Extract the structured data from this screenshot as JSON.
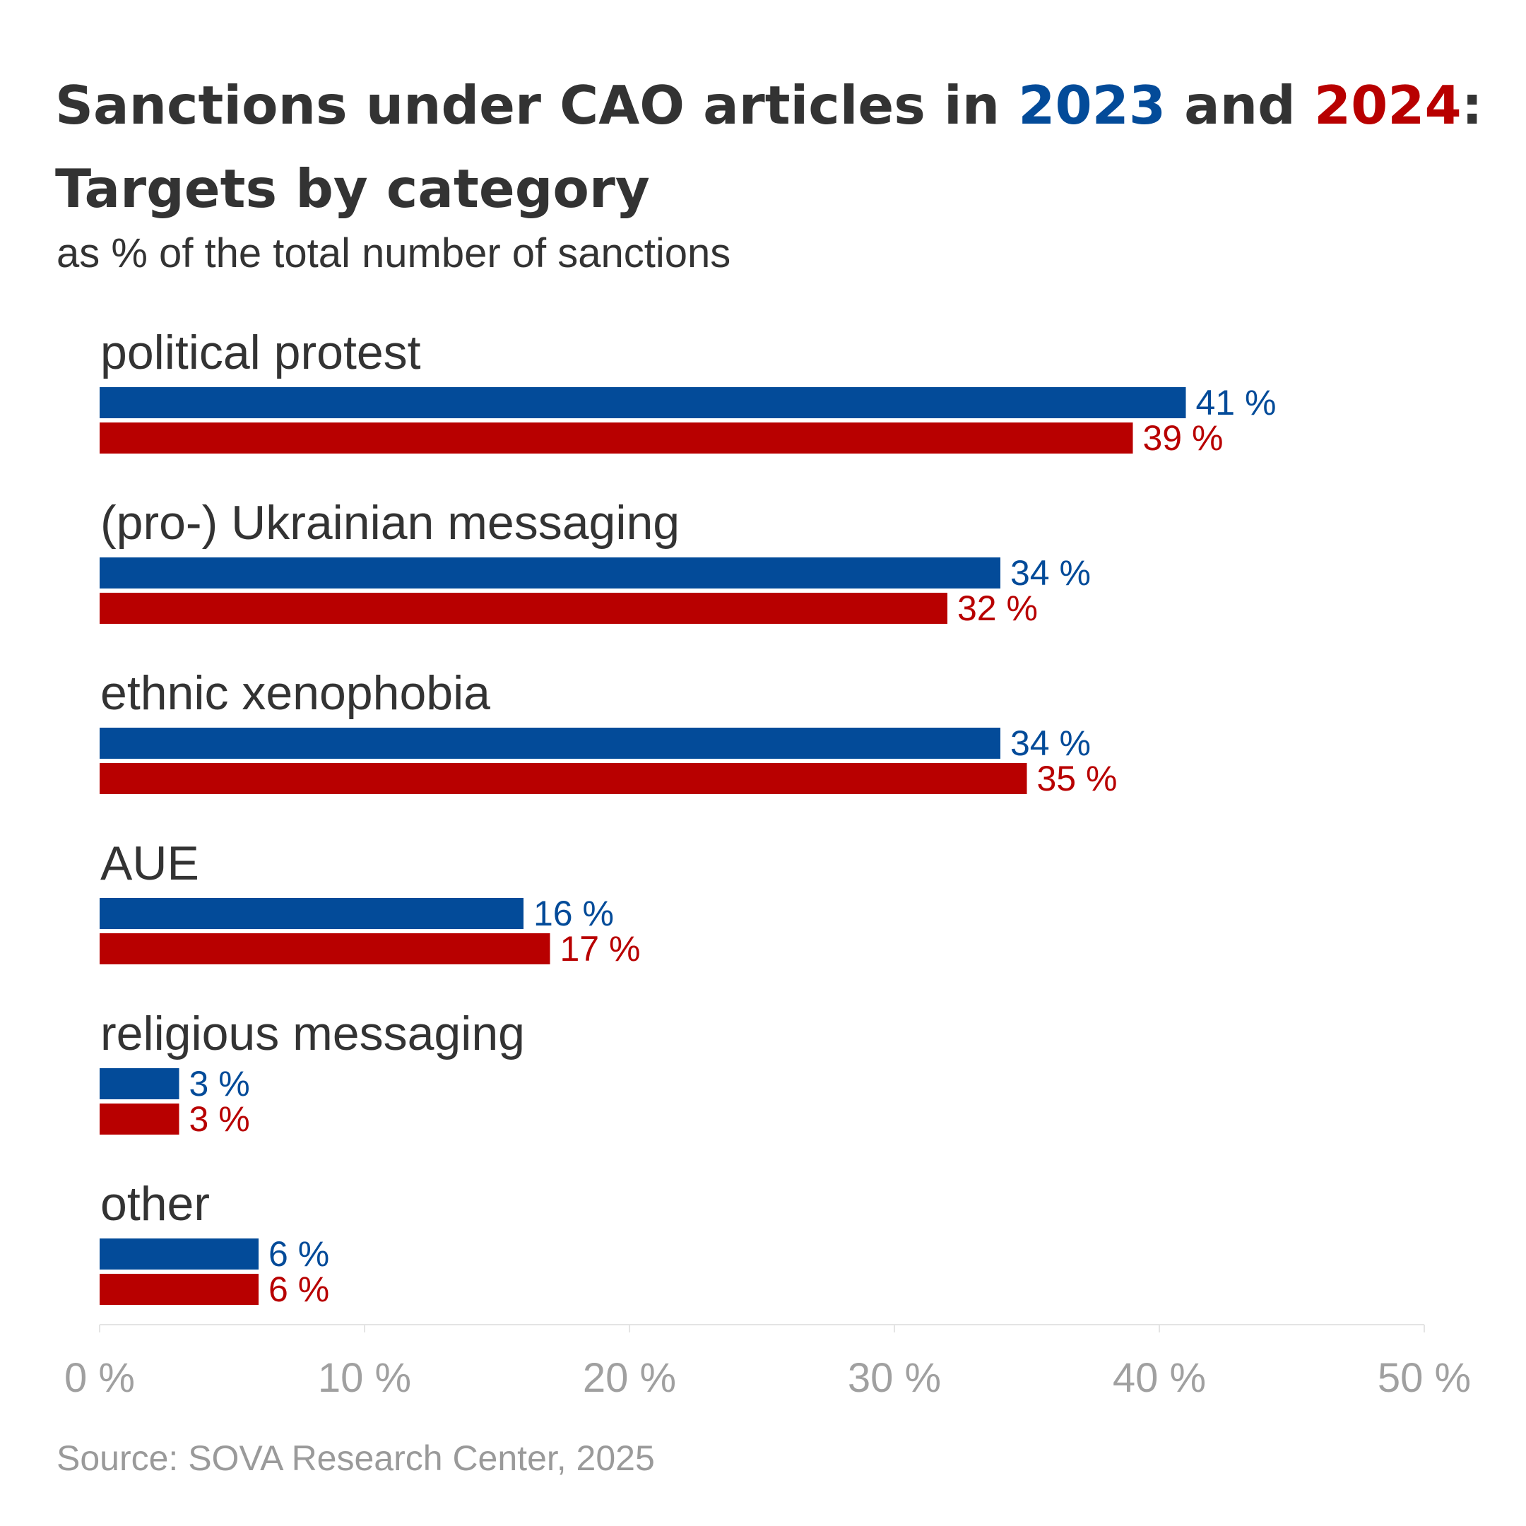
{
  "title": {
    "line1_prefix": "Sanctions under CAO articles in ",
    "year1": "2023",
    "middle": " and ",
    "year2": "2024",
    "suffix": ":",
    "line2": "Targets by category"
  },
  "subtitle": "as % of the total number of sanctions",
  "source": "Source: SOVA Research Center, 2025",
  "chart_data": {
    "type": "bar",
    "orientation": "horizontal",
    "categories": [
      "political protest",
      "(pro-) Ukrainian messaging",
      "ethnic xenophobia",
      "AUE",
      "religious messaging",
      "other"
    ],
    "series": [
      {
        "name": "2023",
        "color": "#034b99",
        "values": [
          41,
          34,
          34,
          16,
          3,
          6
        ]
      },
      {
        "name": "2024",
        "color": "#b80000",
        "values": [
          39,
          32,
          35,
          17,
          3,
          6
        ]
      }
    ],
    "value_suffix": " %",
    "xlim": [
      0,
      50
    ],
    "x_ticks": [
      0,
      10,
      20,
      30,
      40,
      50
    ],
    "x_tick_labels": [
      "0 %",
      "10 %",
      "20 %",
      "30 %",
      "40 %",
      "50 %"
    ],
    "grid": false
  }
}
